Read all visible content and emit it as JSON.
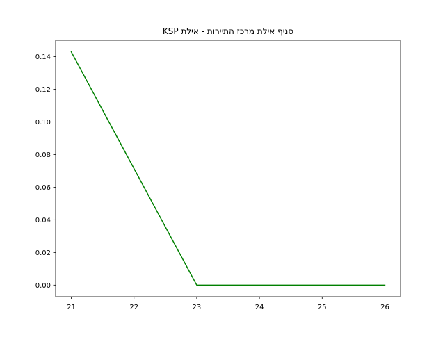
{
  "chart_data": {
    "type": "line",
    "title": "KSP סניף אילת מרכז התיירות - אילת",
    "xlabel": "",
    "ylabel": "",
    "x": [
      21,
      22,
      23,
      24,
      25,
      26
    ],
    "series": [
      {
        "values": [
          0.1429,
          0.0714,
          0.0,
          0.0,
          0.0,
          0.0
        ],
        "color": "#008000"
      }
    ],
    "xlim": [
      20.75,
      26.25
    ],
    "ylim": [
      -0.0071,
      0.15
    ],
    "xticks": [
      21,
      22,
      23,
      24,
      25,
      26
    ],
    "yticks": [
      0.0,
      0.02,
      0.04,
      0.06,
      0.08,
      0.1,
      0.12,
      0.14
    ],
    "xtick_labels": [
      "21",
      "22",
      "23",
      "24",
      "25",
      "26"
    ],
    "ytick_labels": [
      "0.00",
      "0.02",
      "0.04",
      "0.06",
      "0.08",
      "0.10",
      "0.12",
      "0.14"
    ],
    "grid": false,
    "legend": "none"
  }
}
